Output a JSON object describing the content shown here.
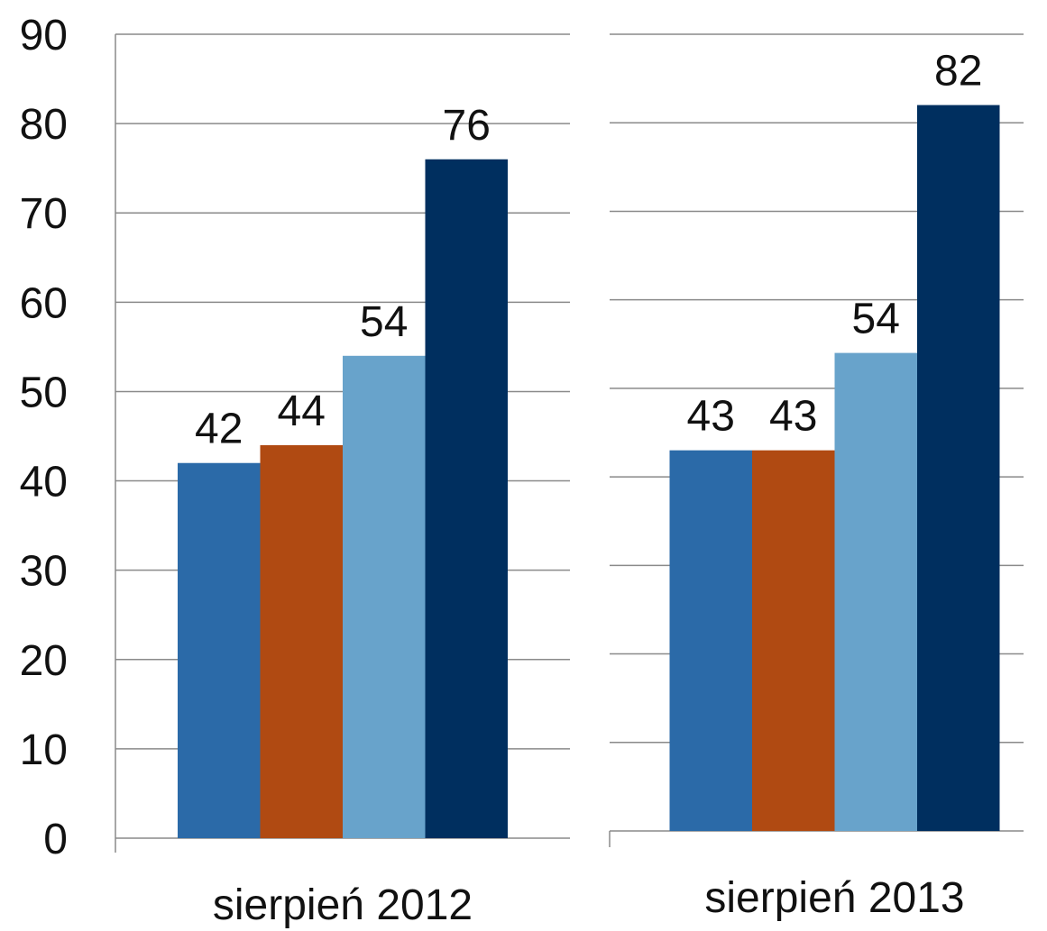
{
  "chart_data": {
    "type": "bar",
    "categories": [
      "sierpień 2012",
      "sierpień 2013"
    ],
    "series": [
      {
        "color": "#2b6aa8",
        "values": [
          42,
          43
        ]
      },
      {
        "color": "#b04a12",
        "values": [
          44,
          43
        ]
      },
      {
        "color": "#68a3cb",
        "values": [
          54,
          54
        ]
      },
      {
        "color": "#002f5f",
        "values": [
          76,
          82
        ]
      }
    ],
    "ylim": [
      0,
      90
    ],
    "yticks": [
      0,
      10,
      20,
      30,
      40,
      50,
      60,
      70,
      80,
      90
    ],
    "grid": true
  }
}
